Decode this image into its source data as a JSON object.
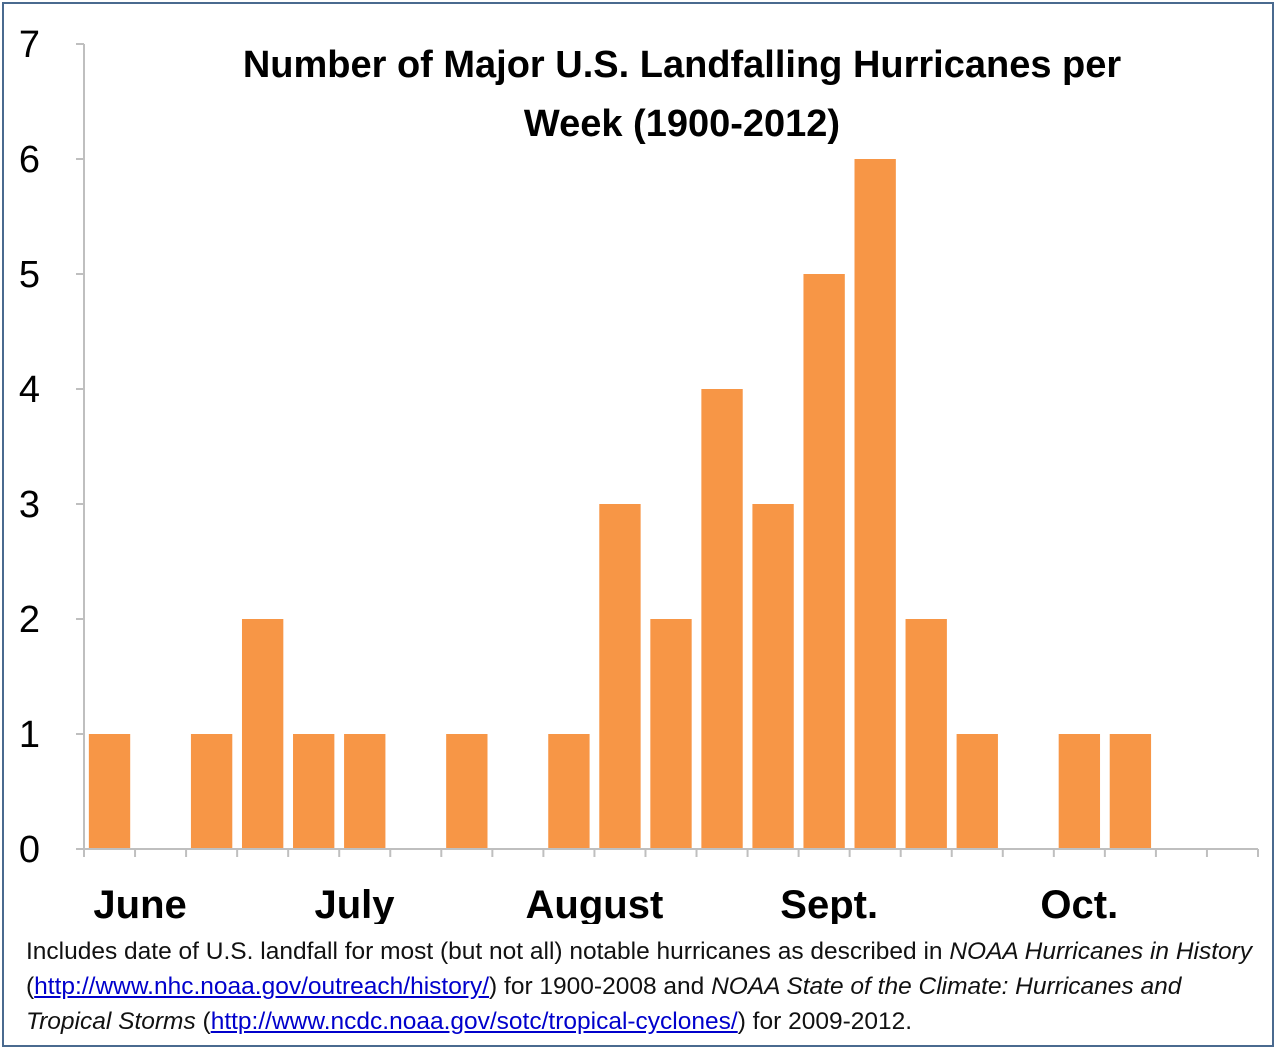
{
  "chart_data": {
    "type": "bar",
    "title_lines": [
      "Number of Major U.S. Landfalling Hurricanes per",
      "Week (1900-2012)"
    ],
    "xlabel": "",
    "ylabel": "",
    "ylim": [
      0,
      7
    ],
    "yticks": [
      "0",
      "1",
      "2",
      "3",
      "4",
      "5",
      "6",
      "7"
    ],
    "week_count": 23,
    "values": [
      1,
      0,
      1,
      2,
      1,
      1,
      0,
      1,
      0,
      1,
      3,
      2,
      4,
      3,
      5,
      6,
      2,
      1,
      0,
      1,
      1,
      0,
      0
    ],
    "month_labels": [
      {
        "label": "June",
        "week_position": 1.1
      },
      {
        "label": "July",
        "week_position": 5.3
      },
      {
        "label": "August",
        "week_position": 10.0
      },
      {
        "label": "Sept.",
        "week_position": 14.6
      },
      {
        "label": "Oct.",
        "week_position": 19.5
      }
    ],
    "bar_color": "#f79646",
    "axis_color": "#bfbfbf",
    "grid": false
  },
  "footnote": {
    "part1": "Includes date of U.S. landfall for most (but not all) notable hurricanes as described in ",
    "italic1": "NOAA Hurricanes in History",
    "paren_open1": " (",
    "link1": "http://www.nhc.noaa.gov/outreach/history/",
    "part2": ") for 1900-2008 and ",
    "italic2": "NOAA State of the Climate: Hurricanes and Tropical Storms",
    "paren_open2": " (",
    "link2": "http://www.ncdc.noaa.gov/sotc/tropical-cyclones/",
    "part3": ") for 2009-2012."
  }
}
